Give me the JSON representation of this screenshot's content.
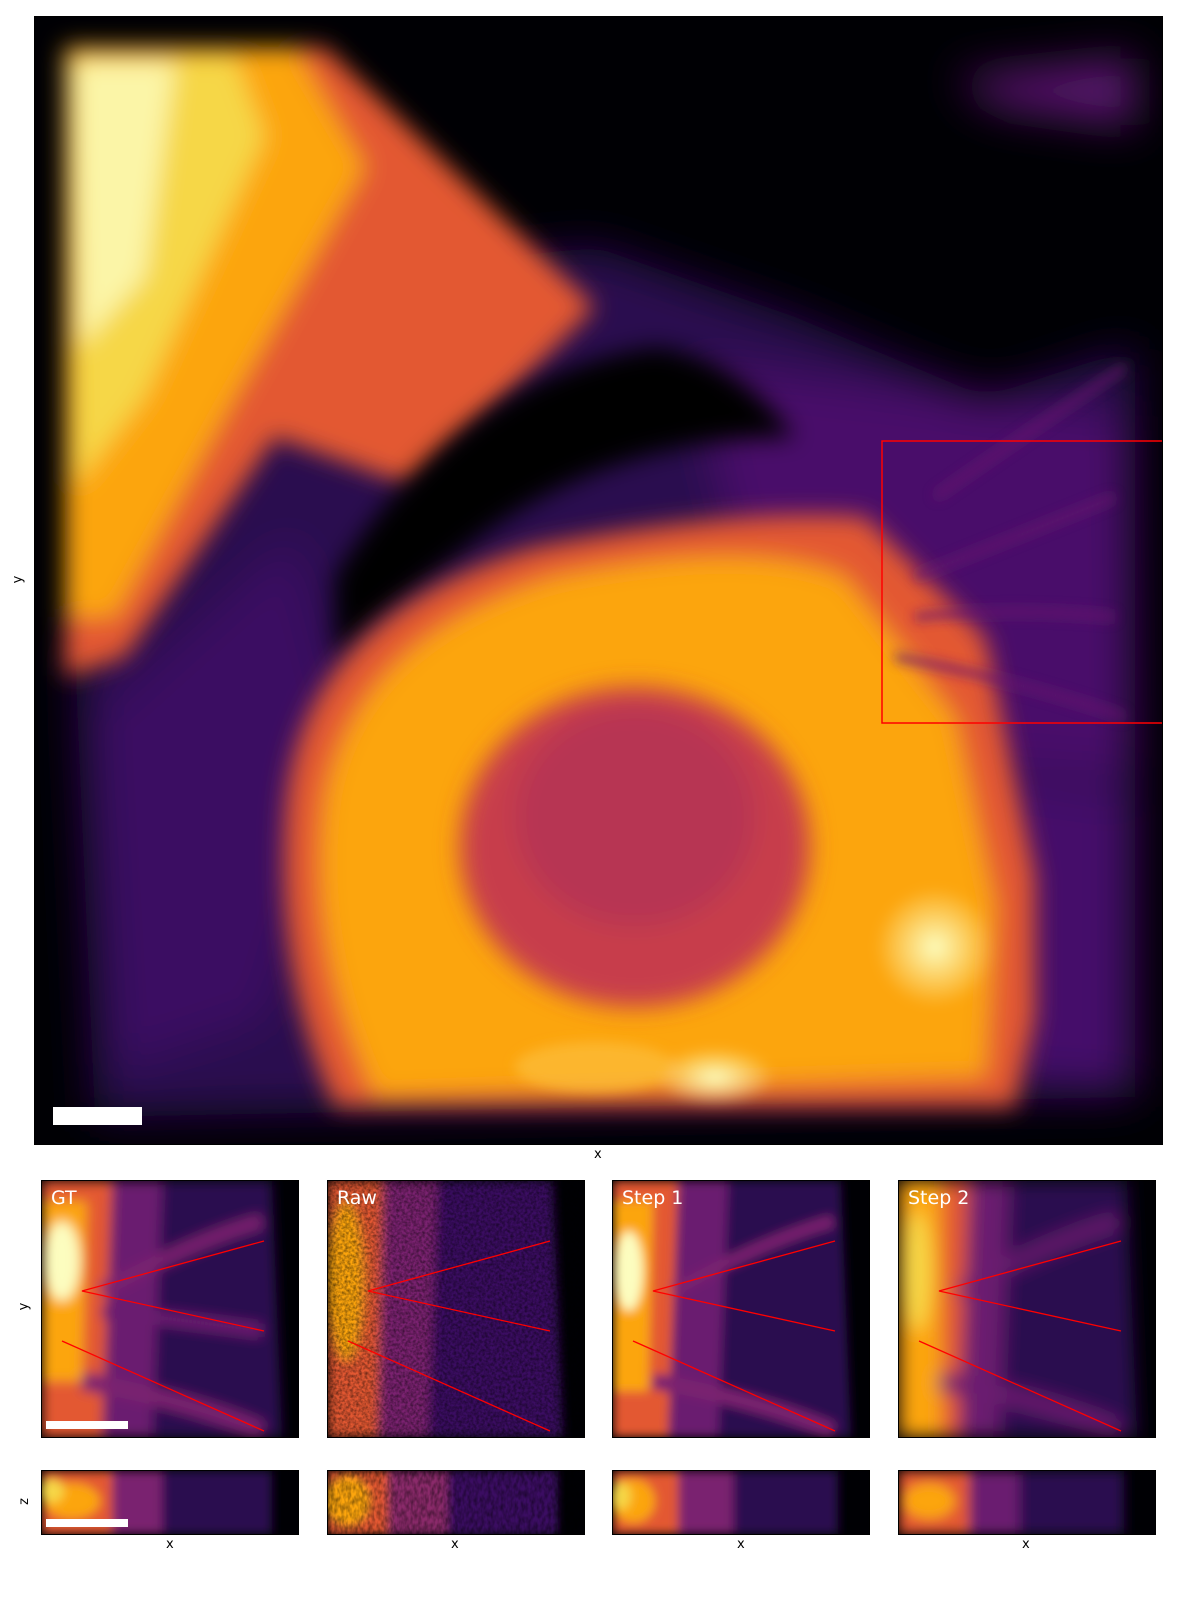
{
  "main_view": {
    "xlabel": "x",
    "ylabel": "y",
    "colormap": "inferno",
    "roi_color": "#ff0000"
  },
  "detail_row": {
    "ylabel": "y",
    "panels": [
      {
        "title": "GT"
      },
      {
        "title": "Raw"
      },
      {
        "title": "Step 1"
      },
      {
        "title": "Step 2"
      }
    ]
  },
  "side_row": {
    "ylabel": "z",
    "xlabels": [
      "x",
      "x",
      "x",
      "x"
    ]
  },
  "annotation_color": "#ff0000",
  "scalebar_color": "#ffffff"
}
